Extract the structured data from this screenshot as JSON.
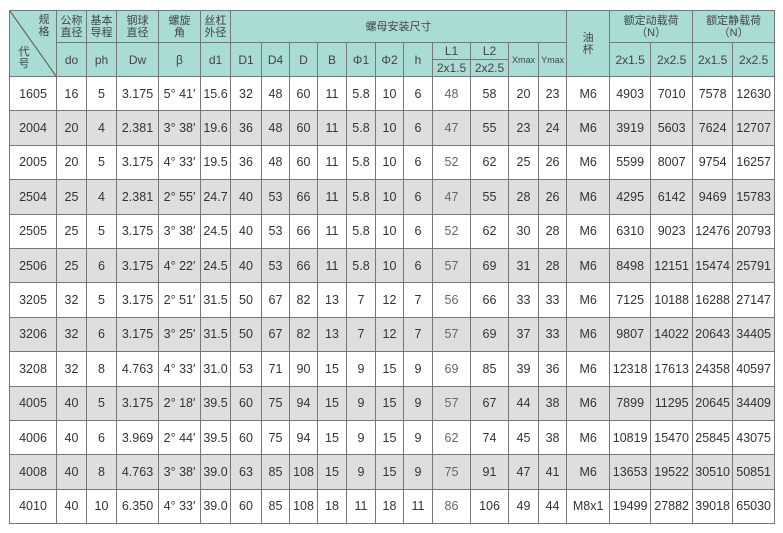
{
  "header": {
    "corner_top": "规格",
    "corner_bottom": "代号",
    "groups": {
      "nominal_dia": "公称直径",
      "lead": "基本导程",
      "ball_dia": "钢球直径",
      "helix_angle": "螺旋角",
      "screw_od": "丝杠外径",
      "nut_dims": "螺母安装尺寸",
      "oil_cup": "油杯",
      "dyn_load": "额定动载荷\n（N）",
      "static_load": "额定静载荷\n（N）"
    },
    "symbols": [
      "do",
      "ph",
      "Dw",
      "β",
      "d1",
      "D1",
      "D4",
      "D",
      "B",
      "Φ1",
      "Φ2",
      "h",
      "L1",
      "L2",
      "Xmax",
      "Ymax"
    ],
    "l_sub": [
      "2x1.5",
      "2x2.5"
    ],
    "load_sub": [
      "2x1.5",
      "2x2.5",
      "2x1.5",
      "2x2.5"
    ]
  },
  "rows": [
    [
      "1605",
      "16",
      "5",
      "3.175",
      "5° 41′",
      "15.6",
      "32",
      "48",
      "60",
      "11",
      "5.8",
      "10",
      "6",
      "48",
      "58",
      "20",
      "23",
      "M6",
      "4903",
      "7010",
      "7578",
      "12630"
    ],
    [
      "2004",
      "20",
      "4",
      "2.381",
      "3° 38′",
      "19.6",
      "36",
      "48",
      "60",
      "11",
      "5.8",
      "10",
      "6",
      "47",
      "55",
      "23",
      "24",
      "M6",
      "3919",
      "5603",
      "7624",
      "12707"
    ],
    [
      "2005",
      "20",
      "5",
      "3.175",
      "4° 33′",
      "19.5",
      "36",
      "48",
      "60",
      "11",
      "5.8",
      "10",
      "6",
      "52",
      "62",
      "25",
      "26",
      "M6",
      "5599",
      "8007",
      "9754",
      "16257"
    ],
    [
      "2504",
      "25",
      "4",
      "2.381",
      "2° 55′",
      "24.7",
      "40",
      "53",
      "66",
      "11",
      "5.8",
      "10",
      "6",
      "47",
      "55",
      "28",
      "26",
      "M6",
      "4295",
      "6142",
      "9469",
      "15783"
    ],
    [
      "2505",
      "25",
      "5",
      "3.175",
      "3° 38′",
      "24.5",
      "40",
      "53",
      "66",
      "11",
      "5.8",
      "10",
      "6",
      "52",
      "62",
      "30",
      "28",
      "M6",
      "6310",
      "9023",
      "12476",
      "20793"
    ],
    [
      "2506",
      "25",
      "6",
      "3.175",
      "4° 22′",
      "24.5",
      "40",
      "53",
      "66",
      "11",
      "5.8",
      "10",
      "6",
      "57",
      "69",
      "31",
      "28",
      "M6",
      "8498",
      "12151",
      "15474",
      "25791"
    ],
    [
      "3205",
      "32",
      "5",
      "3.175",
      "2° 51′",
      "31.5",
      "50",
      "67",
      "82",
      "13",
      "7",
      "12",
      "7",
      "56",
      "66",
      "33",
      "33",
      "M6",
      "7125",
      "10188",
      "16288",
      "27147"
    ],
    [
      "3206",
      "32",
      "6",
      "3.175",
      "3° 25′",
      "31.5",
      "50",
      "67",
      "82",
      "13",
      "7",
      "12",
      "7",
      "57",
      "69",
      "37",
      "33",
      "M6",
      "9807",
      "14022",
      "20643",
      "34405"
    ],
    [
      "3208",
      "32",
      "8",
      "4.763",
      "4° 33′",
      "31.0",
      "53",
      "71",
      "90",
      "15",
      "9",
      "15",
      "9",
      "69",
      "85",
      "39",
      "36",
      "M6",
      "12318",
      "17613",
      "24358",
      "40597"
    ],
    [
      "4005",
      "40",
      "5",
      "3.175",
      "2° 18′",
      "39.5",
      "60",
      "75",
      "94",
      "15",
      "9",
      "15",
      "9",
      "57",
      "67",
      "44",
      "38",
      "M6",
      "7899",
      "11295",
      "20645",
      "34409"
    ],
    [
      "4006",
      "40",
      "6",
      "3.969",
      "2° 44′",
      "39.5",
      "60",
      "75",
      "94",
      "15",
      "9",
      "15",
      "9",
      "62",
      "74",
      "45",
      "38",
      "M6",
      "10819",
      "15470",
      "25845",
      "43075"
    ],
    [
      "4008",
      "40",
      "8",
      "4.763",
      "3° 38′",
      "39.0",
      "63",
      "85",
      "108",
      "15",
      "9",
      "15",
      "9",
      "75",
      "91",
      "47",
      "41",
      "M6",
      "13653",
      "19522",
      "30510",
      "50851"
    ],
    [
      "4010",
      "40",
      "10",
      "6.350",
      "4° 33′",
      "39.0",
      "60",
      "85",
      "108",
      "18",
      "11",
      "18",
      "11",
      "86",
      "106",
      "49",
      "44",
      "M8x1",
      "19499",
      "27882",
      "39018",
      "65030"
    ]
  ],
  "colors": {
    "header_bg": "#a9dcd5",
    "alt_row_bg": "#dedede",
    "border": "#777777"
  }
}
